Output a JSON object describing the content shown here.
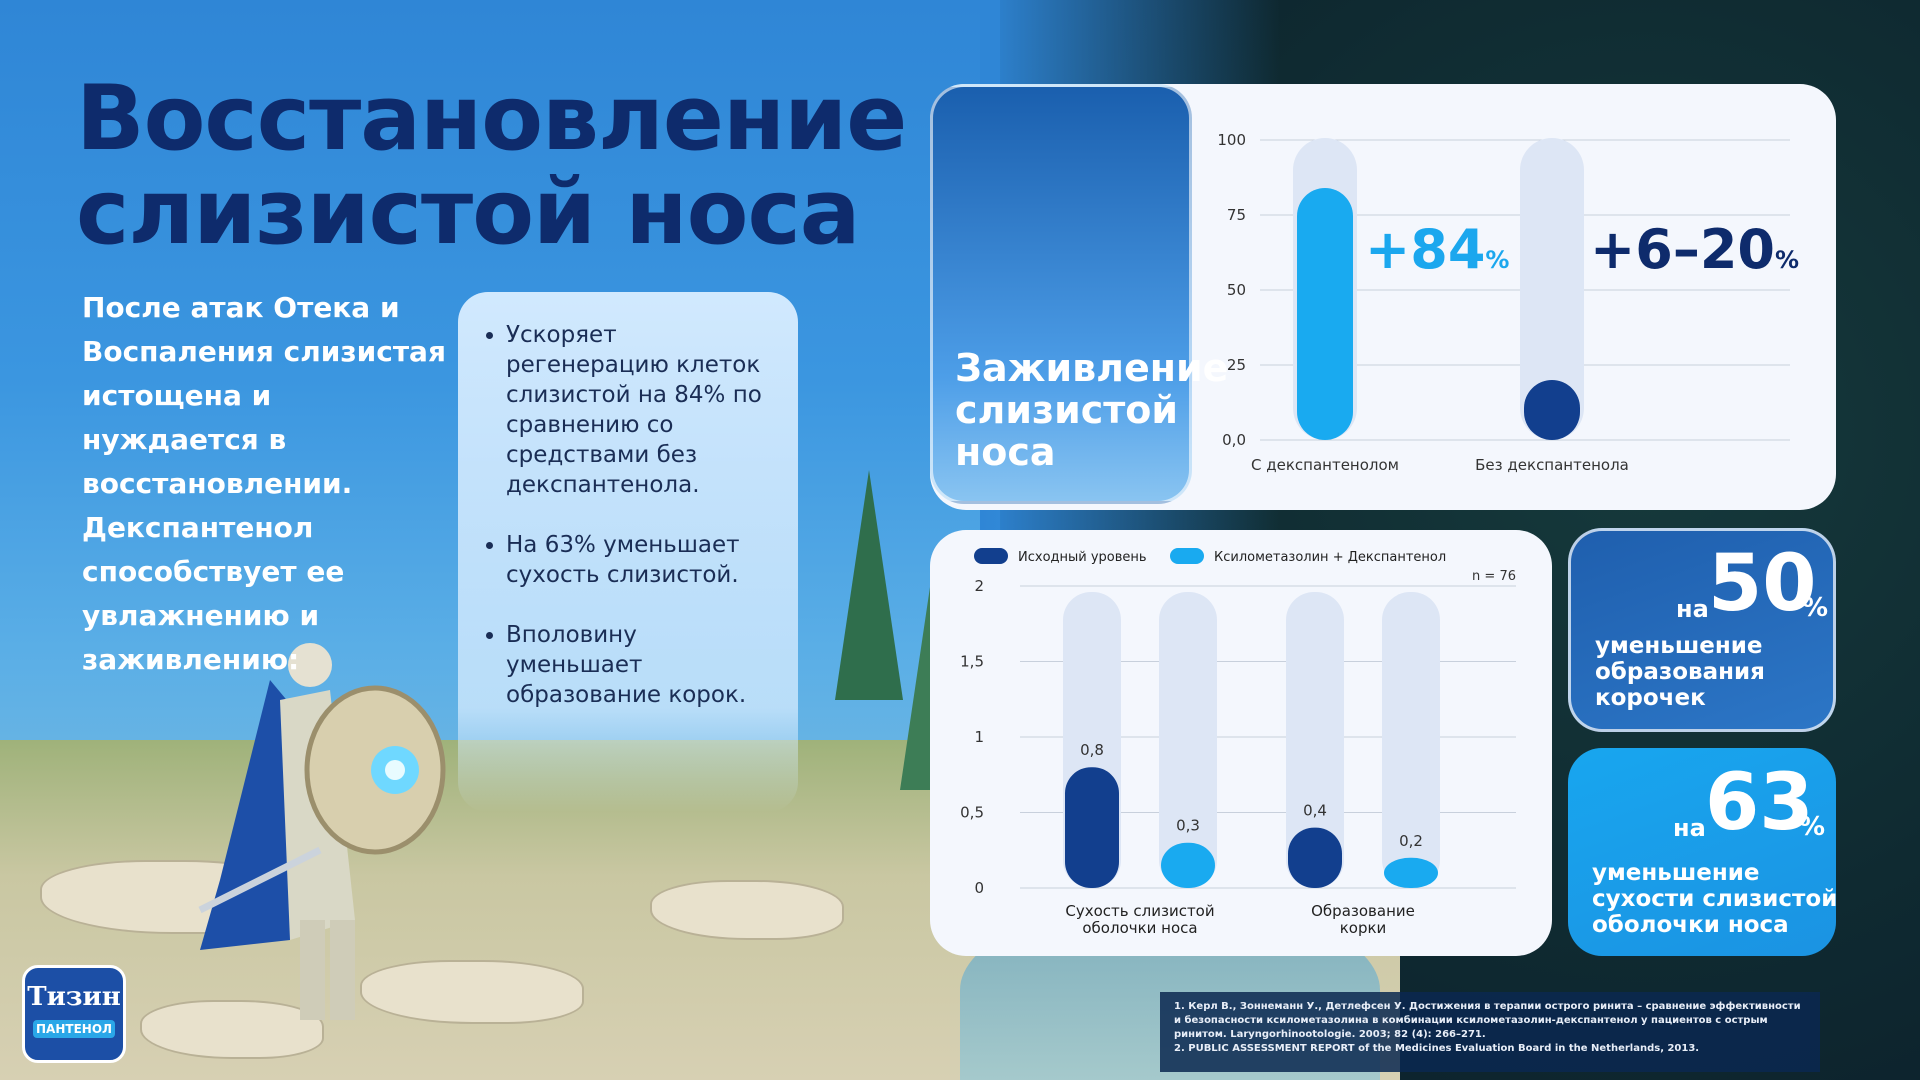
{
  "title": [
    "Восстановление",
    "слизистой носа"
  ],
  "intro": "После атак Отека и Воспаления слизистая истощена и нуждается в восстановлении. Декспантенол способствует ее увлажнению и заживлению:",
  "bullets": [
    "Ускоряет регенерацию клеток слизистой на 84% по сравнению со средствами без декспантенола.",
    "На 63% уменьшает сухость слизистой.",
    "Вполовину уменьшает образование корок."
  ],
  "heal_label": "Заживление слизистой носа",
  "stats": [
    {
      "prefix": "на",
      "value": "50",
      "unit": "%",
      "description": "уменьшение образования корочек"
    },
    {
      "prefix": "на",
      "value": "63",
      "unit": "%",
      "description": "уменьшение сухости слизистой оболочки носа"
    }
  ],
  "references": [
    "1. Керл В., Зоннеманн У., Детлефсен У. Достижения в терапии острого ринита – сравнение эффективности и безопасности ксилометазолина в комбинации ксилометазолин-декспантенол у пациентов с острым ринитом. Laryngorhinootologie. 2003; 82 (4): 266–271.",
    "2. PUBLIC ASSESSMENT REPORT of the Medicines Evaluation Board in the Netherlands, 2013."
  ],
  "logo": {
    "name": "Тизин",
    "sub": "ПАНТЕНОЛ"
  },
  "colors": {
    "navy": "#0e2b6c",
    "dark_bar": "#123f8e",
    "light_bar": "#19aaf0",
    "track": "#dde6f5",
    "accent_text": "#1ba7ee"
  },
  "chart_data": [
    {
      "type": "bar",
      "categories": [
        "С декспантенолом",
        "Без декспантенола"
      ],
      "values": [
        84,
        20
      ],
      "value_labels": [
        "+84%",
        "+6–20%"
      ],
      "ylim": [
        0,
        100
      ],
      "yticks": [
        "0,0",
        "25",
        "50",
        "75",
        "100"
      ],
      "grid": true
    },
    {
      "type": "bar",
      "categories": [
        "Сухость слизистой оболочки носа",
        "Образование корки"
      ],
      "series": [
        {
          "name": "Исходный уровень",
          "values": [
            0.8,
            0.4
          ],
          "labels": [
            "0,8",
            "0,4"
          ]
        },
        {
          "name": "Ксилометазолин + Декспантенол",
          "values": [
            0.3,
            0.2
          ],
          "labels": [
            "0,3",
            "0,2"
          ]
        }
      ],
      "ylim": [
        0,
        2
      ],
      "yticks": [
        "0",
        "0,5",
        "1",
        "1,5",
        "2"
      ],
      "annotation": "n = 76",
      "legend": "top-left",
      "grid": true
    }
  ]
}
